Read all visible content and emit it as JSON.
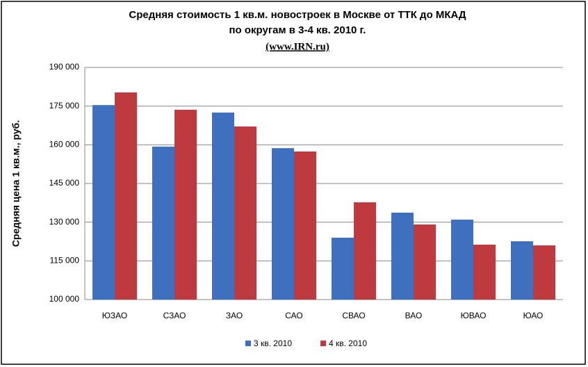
{
  "chart_data": {
    "type": "bar",
    "title": [
      "Средняя стоимость 1 кв.м. новостроек в Москве от ТТК до МКАД",
      "по округам в 3-4 кв. 2010 г."
    ],
    "subtitle": "(www.IRN.ru)",
    "y_label": "Средняя цена 1 кв.м., руб.",
    "categories": [
      "ЮЗАО",
      "СЗАО",
      "ЗАО",
      "САО",
      "СВАО",
      "ВАО",
      "ЮВАО",
      "ЮАО"
    ],
    "series": [
      {
        "name": "3 кв. 2010",
        "color": "#3f6fbf",
        "values": [
          175400,
          159300,
          172500,
          158700,
          124000,
          133700,
          131000,
          122600
        ]
      },
      {
        "name": "4 кв. 2010",
        "color": "#bf3a3e",
        "values": [
          180300,
          173600,
          167100,
          157400,
          137700,
          129100,
          121300,
          121000
        ]
      }
    ],
    "ylim": [
      100000,
      190000
    ],
    "yticks": [
      {
        "value": 100000,
        "label": "100 000"
      },
      {
        "value": 115000,
        "label": "115 000"
      },
      {
        "value": 130000,
        "label": "130 000"
      },
      {
        "value": 145000,
        "label": "145 000"
      },
      {
        "value": 160000,
        "label": "160 000"
      },
      {
        "value": 175000,
        "label": "175 000"
      },
      {
        "value": 190000,
        "label": "190 000"
      }
    ],
    "grid": true,
    "legend": "bottom"
  }
}
